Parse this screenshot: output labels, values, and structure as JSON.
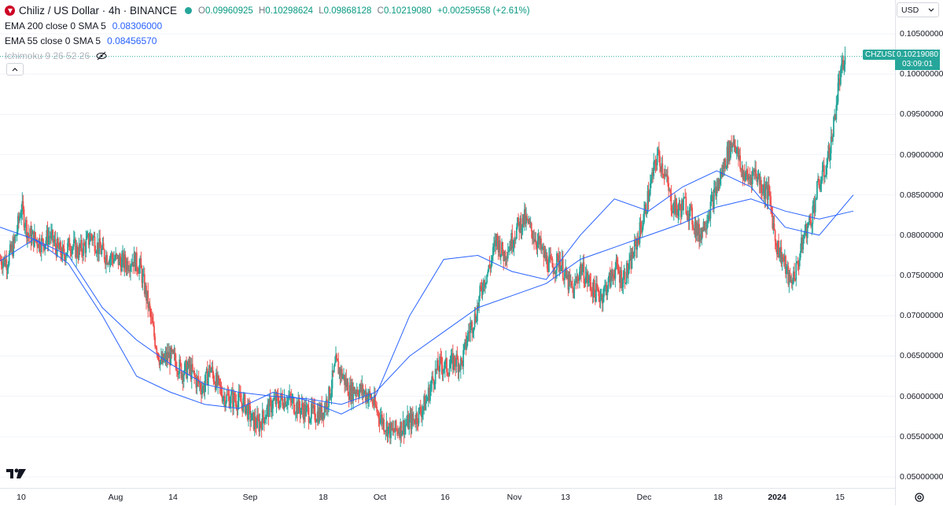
{
  "header": {
    "symbol_title": "Chiliz / US Dollar · 4h · BINANCE",
    "ohlc": [
      {
        "k": "O",
        "v": "0.09960925"
      },
      {
        "k": "H",
        "v": "0.10298624"
      },
      {
        "k": "L",
        "v": "0.09868128"
      },
      {
        "k": "C",
        "v": "0.10219080"
      },
      {
        "k": "",
        "v": "+0.00259558 (+2.61%)"
      }
    ],
    "indicators": [
      {
        "name": "EMA 200 close 0 SMA 5",
        "value": "0.08306000"
      },
      {
        "name": "EMA 55 close 0 SMA 5",
        "value": "0.08456570"
      }
    ],
    "ichimoku_label": "Ichimoku 9 26 52 26"
  },
  "price_axis": {
    "currency": "USD",
    "labels": [
      "0.10500000",
      "0.10000000",
      "0.09500000",
      "0.09000000",
      "0.08500000",
      "0.08000000",
      "0.07500000",
      "0.07000000",
      "0.06500000",
      "0.06000000",
      "0.05500000",
      "0.05000000"
    ]
  },
  "current_price": {
    "ticker": "CHZUSD",
    "price": "0.10219080",
    "countdown": "03:09:01"
  },
  "time_axis": {
    "labels": [
      {
        "text": "10"
      },
      {
        "text": "Aug"
      },
      {
        "text": "14"
      },
      {
        "text": "Sep"
      },
      {
        "text": "18"
      },
      {
        "text": "Oct"
      },
      {
        "text": "16"
      },
      {
        "text": "Nov"
      },
      {
        "text": "13"
      },
      {
        "text": "Dec"
      },
      {
        "text": "18"
      },
      {
        "text": "2024"
      },
      {
        "text": "15"
      }
    ]
  },
  "colors": {
    "up": "#26a69a",
    "down": "#ef5350",
    "ema": "#2962ff",
    "grid": "#f0f3fa"
  },
  "chart_data": {
    "type": "candlestick",
    "timeframe": "4h",
    "x": [
      "Jul 10",
      "Aug",
      "Aug 14",
      "Sep",
      "Sep 18",
      "Oct",
      "Oct 16",
      "Nov",
      "Nov 13",
      "Dec",
      "Dec 18",
      "2024",
      "Jan 15"
    ],
    "ylim": [
      0.0485,
      0.107
    ],
    "price_path": [
      [
        "Jul 10",
        0.077
      ],
      [
        "",
        0.0768
      ],
      [
        "",
        0.079
      ],
      [
        "",
        0.0835
      ],
      [
        "",
        0.08
      ],
      [
        "",
        0.0795
      ],
      [
        "",
        0.079
      ],
      [
        "",
        0.08
      ],
      [
        "",
        0.0785
      ],
      [
        "",
        0.0775
      ],
      [
        "",
        0.079
      ],
      [
        "",
        0.078
      ],
      [
        "Aug",
        0.0785
      ],
      [
        "",
        0.08
      ],
      [
        "",
        0.0785
      ],
      [
        "",
        0.0775
      ],
      [
        "",
        0.0772
      ],
      [
        "",
        0.0768
      ],
      [
        "",
        0.0765
      ],
      [
        "",
        0.077
      ],
      [
        "Aug 14",
        0.076
      ],
      [
        "",
        0.072
      ],
      [
        "",
        0.0675
      ],
      [
        "",
        0.064
      ],
      [
        "",
        0.065
      ],
      [
        "",
        0.0645
      ],
      [
        "",
        0.063
      ],
      [
        "",
        0.0635
      ],
      [
        "",
        0.062
      ],
      [
        "",
        0.061
      ],
      [
        "Sep",
        0.0635
      ],
      [
        "",
        0.0615
      ],
      [
        "",
        0.06
      ],
      [
        "",
        0.0597
      ],
      [
        "",
        0.0595
      ],
      [
        "",
        0.059
      ],
      [
        "",
        0.057
      ],
      [
        "",
        0.0565
      ],
      [
        "",
        0.058
      ],
      [
        "",
        0.0592
      ],
      [
        "Sep 18",
        0.0595
      ],
      [
        "",
        0.0598
      ],
      [
        "",
        0.059
      ],
      [
        "",
        0.0585
      ],
      [
        "",
        0.058
      ],
      [
        "",
        0.0578
      ],
      [
        "",
        0.058
      ],
      [
        "",
        0.06
      ],
      [
        "",
        0.064
      ],
      [
        "",
        0.0625
      ],
      [
        "Oct",
        0.0605
      ],
      [
        "",
        0.061
      ],
      [
        "",
        0.0605
      ],
      [
        "",
        0.0598
      ],
      [
        "",
        0.058
      ],
      [
        "",
        0.0565
      ],
      [
        "",
        0.0555
      ],
      [
        "",
        0.056
      ],
      [
        "",
        0.0565
      ],
      [
        "",
        0.057
      ],
      [
        "Oct 16",
        0.058
      ],
      [
        "",
        0.0595
      ],
      [
        "",
        0.0625
      ],
      [
        "",
        0.064
      ],
      [
        "",
        0.0635
      ],
      [
        "",
        0.0645
      ],
      [
        "",
        0.064
      ],
      [
        "",
        0.068
      ],
      [
        "",
        0.07
      ],
      [
        "",
        0.074
      ],
      [
        "Nov",
        0.076
      ],
      [
        "",
        0.0795
      ],
      [
        "",
        0.0775
      ],
      [
        "",
        0.079
      ],
      [
        "",
        0.081
      ],
      [
        "",
        0.082
      ],
      [
        "",
        0.0805
      ],
      [
        "",
        0.079
      ],
      [
        "",
        0.077
      ],
      [
        "",
        0.076
      ],
      [
        "Nov 13",
        0.077
      ],
      [
        "",
        0.0745
      ],
      [
        "",
        0.073
      ],
      [
        "",
        0.076
      ],
      [
        "",
        0.0745
      ],
      [
        "",
        0.073
      ],
      [
        "",
        0.0725
      ],
      [
        "",
        0.074
      ],
      [
        "",
        0.076
      ],
      [
        "",
        0.0745
      ],
      [
        "Dec",
        0.076
      ],
      [
        "",
        0.079
      ],
      [
        "",
        0.082
      ],
      [
        "",
        0.086
      ],
      [
        "",
        0.09
      ],
      [
        "",
        0.088
      ],
      [
        "",
        0.084
      ],
      [
        "",
        0.083
      ],
      [
        "",
        0.084
      ],
      [
        "",
        0.082
      ],
      [
        "Dec 18",
        0.08
      ],
      [
        "",
        0.082
      ],
      [
        "",
        0.0845
      ],
      [
        "",
        0.087
      ],
      [
        "",
        0.09
      ],
      [
        "",
        0.092
      ],
      [
        "",
        0.088
      ],
      [
        "",
        0.087
      ],
      [
        "",
        0.088
      ],
      [
        "",
        0.086
      ],
      [
        "2024",
        0.085
      ],
      [
        "",
        0.079
      ],
      [
        "",
        0.077
      ],
      [
        "",
        0.074
      ],
      [
        "",
        0.076
      ],
      [
        "",
        0.08
      ],
      [
        "",
        0.082
      ],
      [
        "",
        0.086
      ],
      [
        "",
        0.088
      ],
      [
        "",
        0.092
      ],
      [
        "Jan 15",
        0.099
      ],
      [
        "",
        0.1022
      ]
    ],
    "ema55": [
      [
        "Jul 10",
        0.0768
      ],
      [
        "Aug",
        0.0795
      ],
      [
        "Aug 14",
        0.0765
      ],
      [
        "",
        0.07
      ],
      [
        "Sep",
        0.0625
      ],
      [
        "",
        0.0605
      ],
      [
        "Sep 18",
        0.059
      ],
      [
        "",
        0.0585
      ],
      [
        "Oct",
        0.0605
      ],
      [
        "",
        0.0595
      ],
      [
        "Oct 16",
        0.0578
      ],
      [
        "",
        0.06
      ],
      [
        "Nov",
        0.07
      ],
      [
        "",
        0.077
      ],
      [
        "Nov 13",
        0.0775
      ],
      [
        "",
        0.0755
      ],
      [
        "Dec",
        0.0745
      ],
      [
        "",
        0.08
      ],
      [
        "",
        0.0845
      ],
      [
        "Dec 18",
        0.083
      ],
      [
        "",
        0.086
      ],
      [
        "",
        0.088
      ],
      [
        "2024",
        0.086
      ],
      [
        "",
        0.081
      ],
      [
        "",
        0.08
      ],
      [
        "Jan 15",
        0.085
      ]
    ],
    "ema200": [
      [
        "Jul 10",
        0.081
      ],
      [
        "Aug",
        0.0795
      ],
      [
        "Aug 14",
        0.0775
      ],
      [
        "",
        0.071
      ],
      [
        "Sep",
        0.067
      ],
      [
        "",
        0.064
      ],
      [
        "Sep 18",
        0.0615
      ],
      [
        "",
        0.0605
      ],
      [
        "Oct",
        0.06
      ],
      [
        "",
        0.0597
      ],
      [
        "Oct 16",
        0.059
      ],
      [
        "",
        0.0605
      ],
      [
        "Nov",
        0.065
      ],
      [
        "",
        0.068
      ],
      [
        "Nov 13",
        0.071
      ],
      [
        "",
        0.0725
      ],
      [
        "Dec",
        0.074
      ],
      [
        "",
        0.077
      ],
      [
        "",
        0.0785
      ],
      [
        "Dec 18",
        0.08
      ],
      [
        "",
        0.0815
      ],
      [
        "",
        0.0835
      ],
      [
        "2024",
        0.0845
      ],
      [
        "",
        0.083
      ],
      [
        "",
        0.082
      ],
      [
        "Jan 15",
        0.083
      ]
    ]
  }
}
